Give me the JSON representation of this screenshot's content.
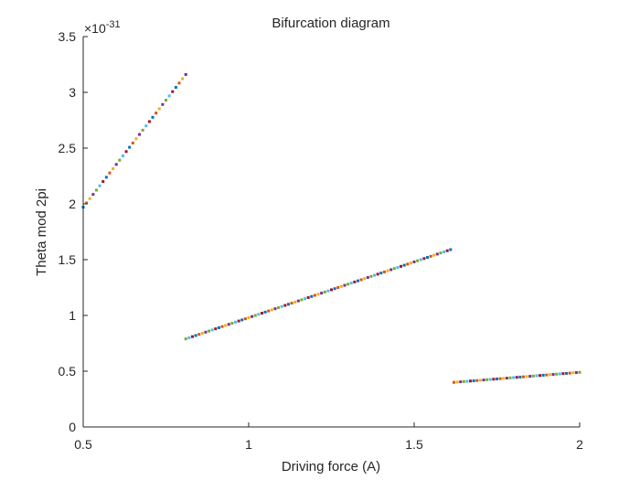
{
  "chart_data": {
    "type": "scatter",
    "title": "Bifurcation diagram",
    "xlabel": "Driving force (A)",
    "ylabel": "Theta mod 2pi",
    "y_exponent_label": "×10",
    "y_exponent_power": "-31",
    "xlim": [
      0.5,
      2.0
    ],
    "ylim": [
      0,
      3.5
    ],
    "x_ticks": [
      0.5,
      1,
      1.5,
      2
    ],
    "x_tick_labels": [
      "0.5",
      "1",
      "1.5",
      "2"
    ],
    "y_ticks": [
      0,
      0.5,
      1,
      1.5,
      2,
      2.5,
      3,
      3.5
    ],
    "y_tick_labels": [
      "0",
      "0.5",
      "1",
      "1.5",
      "2",
      "2.5",
      "3",
      "3.5"
    ],
    "grid": false,
    "y_scale_factor": "1e-31",
    "palette": [
      "#0072BD",
      "#D95319",
      "#EDB120",
      "#7E2F8E",
      "#77AC30",
      "#4DBEEE",
      "#A2142F"
    ],
    "segments": [
      {
        "x_start": 0.5,
        "x_end": 0.81,
        "y_start": 1.97,
        "y_end": 3.16,
        "step": 0.01
      },
      {
        "x_start": 0.81,
        "x_end": 1.61,
        "y_start": 0.79,
        "y_end": 1.59,
        "step": 0.01
      },
      {
        "x_start": 1.62,
        "x_end": 2.0,
        "y_start": 0.4,
        "y_end": 0.49,
        "step": 0.01
      }
    ]
  }
}
